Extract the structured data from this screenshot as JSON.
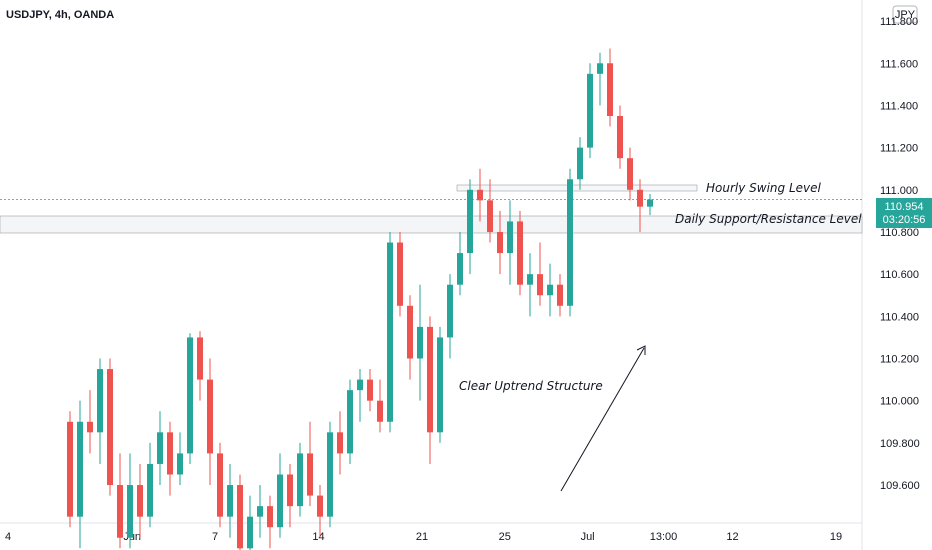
{
  "header": {
    "title": "USDJPY, 4h, OANDA",
    "currency_button": "JPY"
  },
  "chart_data": {
    "type": "candlestick",
    "symbol": "USDJPY",
    "interval": "4h",
    "source": "OANDA",
    "ylim": [
      109.42,
      111.9
    ],
    "y_ticks": [
      "111.800",
      "111.600",
      "111.400",
      "111.200",
      "111.000",
      "110.800",
      "110.600",
      "110.400",
      "110.200",
      "110.000",
      "109.800",
      "109.600"
    ],
    "x_ticks": [
      {
        "label": "4",
        "pos": 0
      },
      {
        "label": "Jun",
        "pos": 18
      },
      {
        "label": "7",
        "pos": 30
      },
      {
        "label": "14",
        "pos": 45
      },
      {
        "label": "21",
        "pos": 60
      },
      {
        "label": "25",
        "pos": 72
      },
      {
        "label": "Jul",
        "pos": 84
      },
      {
        "label": "13:00",
        "pos": 95
      },
      {
        "label": "12",
        "pos": 105
      },
      {
        "label": "19",
        "pos": 120
      }
    ],
    "candles": [
      [
        109.9,
        109.95,
        109.4,
        109.45
      ],
      [
        109.45,
        110.0,
        109.3,
        109.9
      ],
      [
        109.9,
        110.05,
        109.75,
        109.85
      ],
      [
        109.85,
        110.2,
        109.7,
        110.15
      ],
      [
        110.15,
        110.2,
        109.55,
        109.6
      ],
      [
        109.6,
        109.75,
        109.3,
        109.35
      ],
      [
        109.35,
        109.75,
        109.3,
        109.6
      ],
      [
        109.6,
        109.7,
        109.35,
        109.45
      ],
      [
        109.45,
        109.8,
        109.4,
        109.7
      ],
      [
        109.7,
        109.95,
        109.6,
        109.85
      ],
      [
        109.85,
        109.9,
        109.55,
        109.65
      ],
      [
        109.65,
        109.85,
        109.6,
        109.75
      ],
      [
        109.75,
        110.32,
        109.7,
        110.3
      ],
      [
        110.3,
        110.33,
        110.0,
        110.1
      ],
      [
        110.1,
        110.2,
        109.6,
        109.75
      ],
      [
        109.75,
        109.8,
        109.4,
        109.45
      ],
      [
        109.45,
        109.7,
        109.35,
        109.6
      ],
      [
        109.6,
        109.65,
        109.2,
        109.3
      ],
      [
        109.3,
        109.55,
        109.2,
        109.45
      ],
      [
        109.45,
        109.6,
        109.35,
        109.5
      ],
      [
        109.5,
        109.55,
        109.3,
        109.4
      ],
      [
        109.4,
        109.75,
        109.35,
        109.65
      ],
      [
        109.65,
        109.7,
        109.4,
        109.5
      ],
      [
        109.5,
        109.8,
        109.45,
        109.75
      ],
      [
        109.75,
        109.9,
        109.5,
        109.55
      ],
      [
        109.55,
        109.6,
        109.35,
        109.45
      ],
      [
        109.45,
        109.9,
        109.4,
        109.85
      ],
      [
        109.85,
        109.95,
        109.65,
        109.75
      ],
      [
        109.75,
        110.1,
        109.7,
        110.05
      ],
      [
        110.05,
        110.15,
        109.9,
        110.1
      ],
      [
        110.1,
        110.15,
        109.95,
        110.0
      ],
      [
        110.0,
        110.1,
        109.85,
        109.9
      ],
      [
        109.9,
        110.8,
        109.85,
        110.75
      ],
      [
        110.75,
        110.8,
        110.4,
        110.45
      ],
      [
        110.45,
        110.5,
        110.1,
        110.2
      ],
      [
        110.2,
        110.55,
        110.0,
        110.35
      ],
      [
        110.35,
        110.4,
        109.7,
        109.85
      ],
      [
        109.85,
        110.35,
        109.8,
        110.3
      ],
      [
        110.3,
        110.6,
        110.2,
        110.55
      ],
      [
        110.55,
        110.8,
        110.5,
        110.7
      ],
      [
        110.7,
        111.05,
        110.6,
        111.0
      ],
      [
        111.0,
        111.1,
        110.85,
        110.95
      ],
      [
        110.95,
        111.05,
        110.75,
        110.8
      ],
      [
        110.8,
        110.9,
        110.6,
        110.7
      ],
      [
        110.7,
        110.95,
        110.55,
        110.85
      ],
      [
        110.85,
        110.9,
        110.5,
        110.55
      ],
      [
        110.55,
        110.7,
        110.4,
        110.6
      ],
      [
        110.6,
        110.75,
        110.45,
        110.5
      ],
      [
        110.5,
        110.65,
        110.4,
        110.55
      ],
      [
        110.55,
        110.6,
        110.4,
        110.45
      ],
      [
        110.45,
        111.1,
        110.4,
        111.05
      ],
      [
        111.05,
        111.25,
        111.0,
        111.2
      ],
      [
        111.2,
        111.6,
        111.15,
        111.55
      ],
      [
        111.55,
        111.65,
        111.4,
        111.6
      ],
      [
        111.6,
        111.67,
        111.3,
        111.35
      ],
      [
        111.35,
        111.4,
        111.1,
        111.15
      ],
      [
        111.15,
        111.2,
        110.95,
        111.0
      ],
      [
        111.0,
        111.05,
        110.8,
        110.92
      ],
      [
        110.92,
        110.98,
        110.88,
        110.954
      ]
    ],
    "current_price": "110.954",
    "countdown": "03:20:56",
    "levels": [
      {
        "value": 111.05,
        "label": "Hourly Swing Level"
      },
      {
        "value": 110.865,
        "label": "Daily Support/Resistance Level"
      }
    ],
    "annotation": "Clear Uptrend Structure",
    "colors": {
      "up": "#26a69a",
      "down": "#ef5350",
      "price_tag": "#26a69a",
      "level_line": "#9aa0a6"
    }
  }
}
